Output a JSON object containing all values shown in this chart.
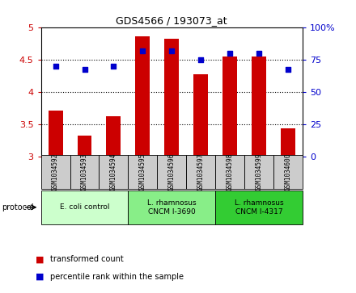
{
  "title": "GDS4566 / 193073_at",
  "samples": [
    "GSM1034592",
    "GSM1034593",
    "GSM1034594",
    "GSM1034595",
    "GSM1034596",
    "GSM1034597",
    "GSM1034598",
    "GSM1034599",
    "GSM1034600"
  ],
  "bar_values": [
    3.72,
    3.33,
    3.63,
    4.87,
    4.83,
    4.28,
    4.55,
    4.55,
    3.44
  ],
  "scatter_right": [
    70,
    68,
    70,
    82,
    82,
    75,
    80,
    80,
    68
  ],
  "ylim_left": [
    3.0,
    5.0
  ],
  "ylim_right": [
    0,
    100
  ],
  "yticks_left": [
    3.0,
    3.5,
    4.0,
    4.5,
    5.0
  ],
  "yticks_right": [
    0,
    25,
    50,
    75,
    100
  ],
  "ytick_labels_left": [
    "3",
    "3.5",
    "4",
    "4.5",
    "5"
  ],
  "ytick_labels_right": [
    "0",
    "25",
    "50",
    "75",
    "100%"
  ],
  "bar_color": "#cc0000",
  "scatter_color": "#0000cc",
  "groups": [
    {
      "label": "E. coli control",
      "start": 0,
      "end": 3,
      "color": "#ccffcc"
    },
    {
      "label": "L. rhamnosus\nCNCM I-3690",
      "start": 3,
      "end": 6,
      "color": "#88ee88"
    },
    {
      "label": "L. rhamnosus\nCNCM I-4317",
      "start": 6,
      "end": 9,
      "color": "#33cc33"
    }
  ],
  "protocol_label": "protocol",
  "legend_bar": "transformed count",
  "legend_scatter": "percentile rank within the sample",
  "tick_label_color_left": "#cc0000",
  "tick_label_color_right": "#0000cc",
  "bar_width": 0.5,
  "sample_box_color": "#cccccc",
  "grid_dotted_color": "#000000",
  "spine_color": "#000000"
}
